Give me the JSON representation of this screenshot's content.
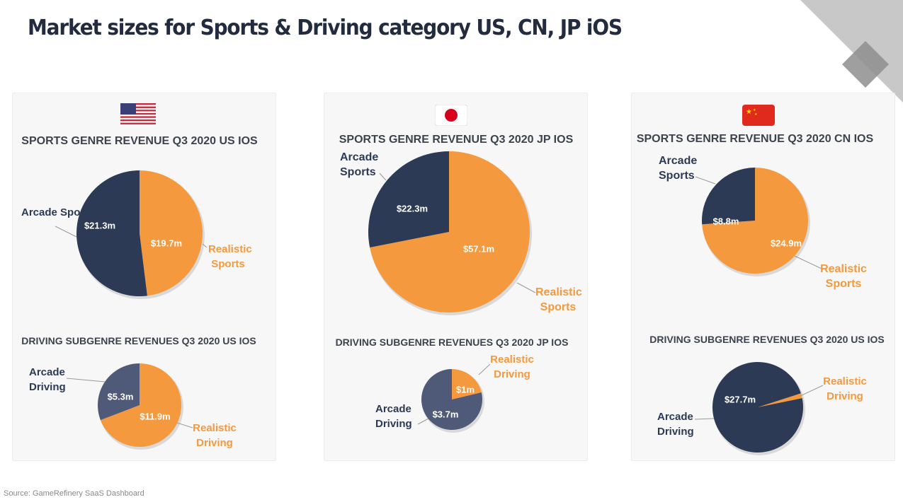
{
  "title": "Market sizes for Sports & Driving category US, CN, JP iOS",
  "source": "Source: GameRefinery SaaS Dashboard",
  "colors": {
    "arcade_sports": "#2c3a55",
    "realistic": "#f4993d",
    "arcade_driving": "#4e5a78"
  },
  "chart_data": [
    {
      "type": "pie",
      "title": "SPORTS GENRE REVENUE Q3 2020 US IOS",
      "flag": "US",
      "slices": [
        {
          "label": "Realistic Sports",
          "value": 19.7,
          "display": "$19.7m"
        },
        {
          "label": "Arcade Sports",
          "value": 21.3,
          "display": "$21.3m"
        }
      ]
    },
    {
      "type": "pie",
      "title": "DRIVING SUBGENRE REVENUES Q3 2020 US IOS",
      "slices": [
        {
          "label": "Realistic Driving",
          "value": 11.9,
          "display": "$11.9m"
        },
        {
          "label": "Arcade Driving",
          "value": 5.3,
          "display": "$5.3m"
        }
      ]
    },
    {
      "type": "pie",
      "title": "SPORTS GENRE REVENUE Q3 2020 JP IOS",
      "flag": "JP",
      "slices": [
        {
          "label": "Realistic Sports",
          "value": 57.1,
          "display": "$57.1m"
        },
        {
          "label": "Arcade Sports",
          "value": 22.3,
          "display": "$22.3m"
        }
      ]
    },
    {
      "type": "pie",
      "title": "DRIVING SUBGENRE REVENUES Q3 2020 JP IOS",
      "slices": [
        {
          "label": "Realistic Driving",
          "value": 1,
          "display": "$1m"
        },
        {
          "label": "Arcade Driving",
          "value": 3.7,
          "display": "$3.7m"
        }
      ]
    },
    {
      "type": "pie",
      "title": "SPORTS GENRE REVENUE Q3 2020 CN IOS",
      "flag": "CN",
      "slices": [
        {
          "label": "Realistic Sports",
          "value": 24.9,
          "display": "$24.9m"
        },
        {
          "label": "Arcade Sports",
          "value": 8.8,
          "display": "$8.8m"
        }
      ]
    },
    {
      "type": "pie",
      "title": "DRIVING SUBGENRE REVENUES Q3 2020 US IOS",
      "slices": [
        {
          "label": "Realistic Driving",
          "value": 0.5
        },
        {
          "label": "Arcade Driving",
          "value": 27.7,
          "display": "$27.7m"
        }
      ]
    }
  ]
}
